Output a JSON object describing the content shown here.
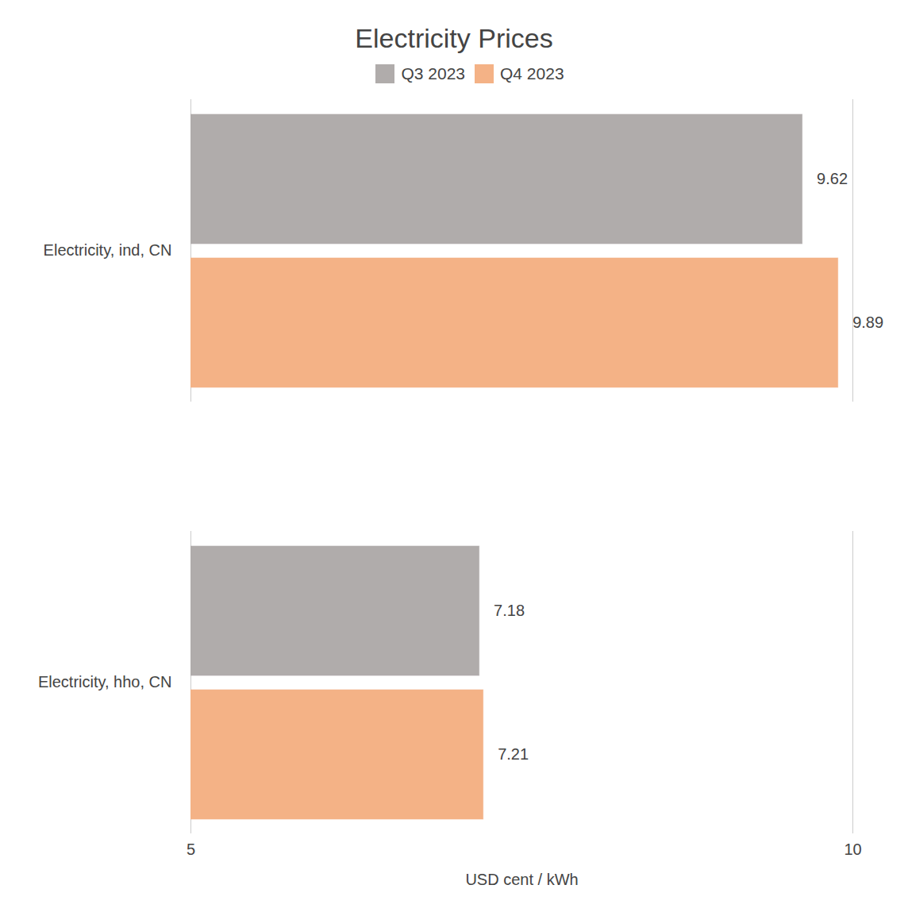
{
  "chart_data": {
    "type": "bar",
    "title": "Electricity Prices",
    "orientation": "horizontal",
    "categories": [
      "Electricity, ind, CN",
      "Electricity, hho, CN"
    ],
    "series": [
      {
        "name": "Q3 2023",
        "color": "#b0acab",
        "values": [
          9.62,
          7.18
        ]
      },
      {
        "name": "Q4 2023",
        "color": "#f4b286",
        "values": [
          9.89,
          7.21
        ]
      }
    ],
    "xlabel": "USD cent / kWh",
    "xlim": [
      5,
      10
    ],
    "xticks": [
      5,
      10
    ],
    "grid": true,
    "legend": "top",
    "data_labels": true
  }
}
